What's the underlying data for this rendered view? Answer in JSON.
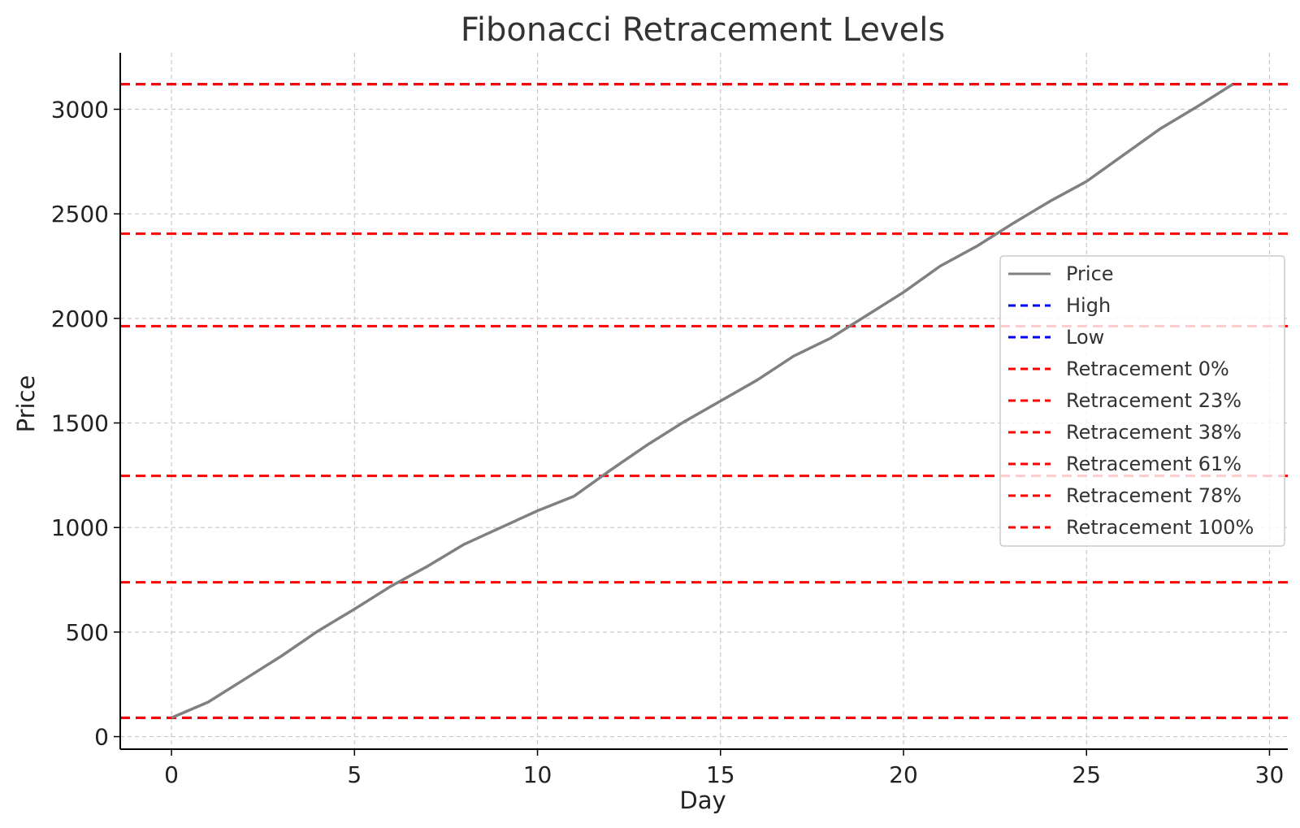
{
  "chart_data": {
    "type": "line",
    "title": "Fibonacci Retracement Levels",
    "xlabel": "Day",
    "ylabel": "Price",
    "xlim": [
      -1.4,
      30.5
    ],
    "ylim": [
      -60,
      3270
    ],
    "x_ticks": [
      0,
      5,
      10,
      15,
      20,
      25,
      30
    ],
    "y_ticks": [
      0,
      500,
      1000,
      1500,
      2000,
      2500,
      3000
    ],
    "grid": true,
    "legend_position": "center-right",
    "series": [
      {
        "name": "Price",
        "color": "#808080",
        "style": "solid",
        "x": [
          0,
          1,
          2,
          3,
          4,
          5,
          6,
          7,
          8,
          9,
          10,
          11,
          12,
          13,
          14,
          15,
          16,
          17,
          18,
          19,
          20,
          21,
          22,
          23,
          24,
          25,
          26,
          27,
          28,
          29
        ],
        "y": [
          90,
          165,
          275,
          385,
          505,
          610,
          720,
          815,
          920,
          1000,
          1080,
          1150,
          1275,
          1395,
          1505,
          1605,
          1705,
          1820,
          1905,
          2015,
          2125,
          2250,
          2345,
          2455,
          2560,
          2655,
          2780,
          2905,
          3010,
          3120
        ]
      }
    ],
    "levels": [
      {
        "name": "High",
        "value": 3120,
        "color": "#0000ff"
      },
      {
        "name": "Low",
        "value": 90,
        "color": "#0000ff"
      },
      {
        "name": "Retracement 0%",
        "value": 3120,
        "color": "#ff0000"
      },
      {
        "name": "Retracement 23%",
        "value": 2405,
        "color": "#ff0000"
      },
      {
        "name": "Retracement 38%",
        "value": 1963,
        "color": "#ff0000"
      },
      {
        "name": "Retracement 61%",
        "value": 1247,
        "color": "#ff0000"
      },
      {
        "name": "Retracement 78%",
        "value": 738,
        "color": "#ff0000"
      },
      {
        "name": "Retracement 100%",
        "value": 90,
        "color": "#ff0000"
      }
    ]
  }
}
